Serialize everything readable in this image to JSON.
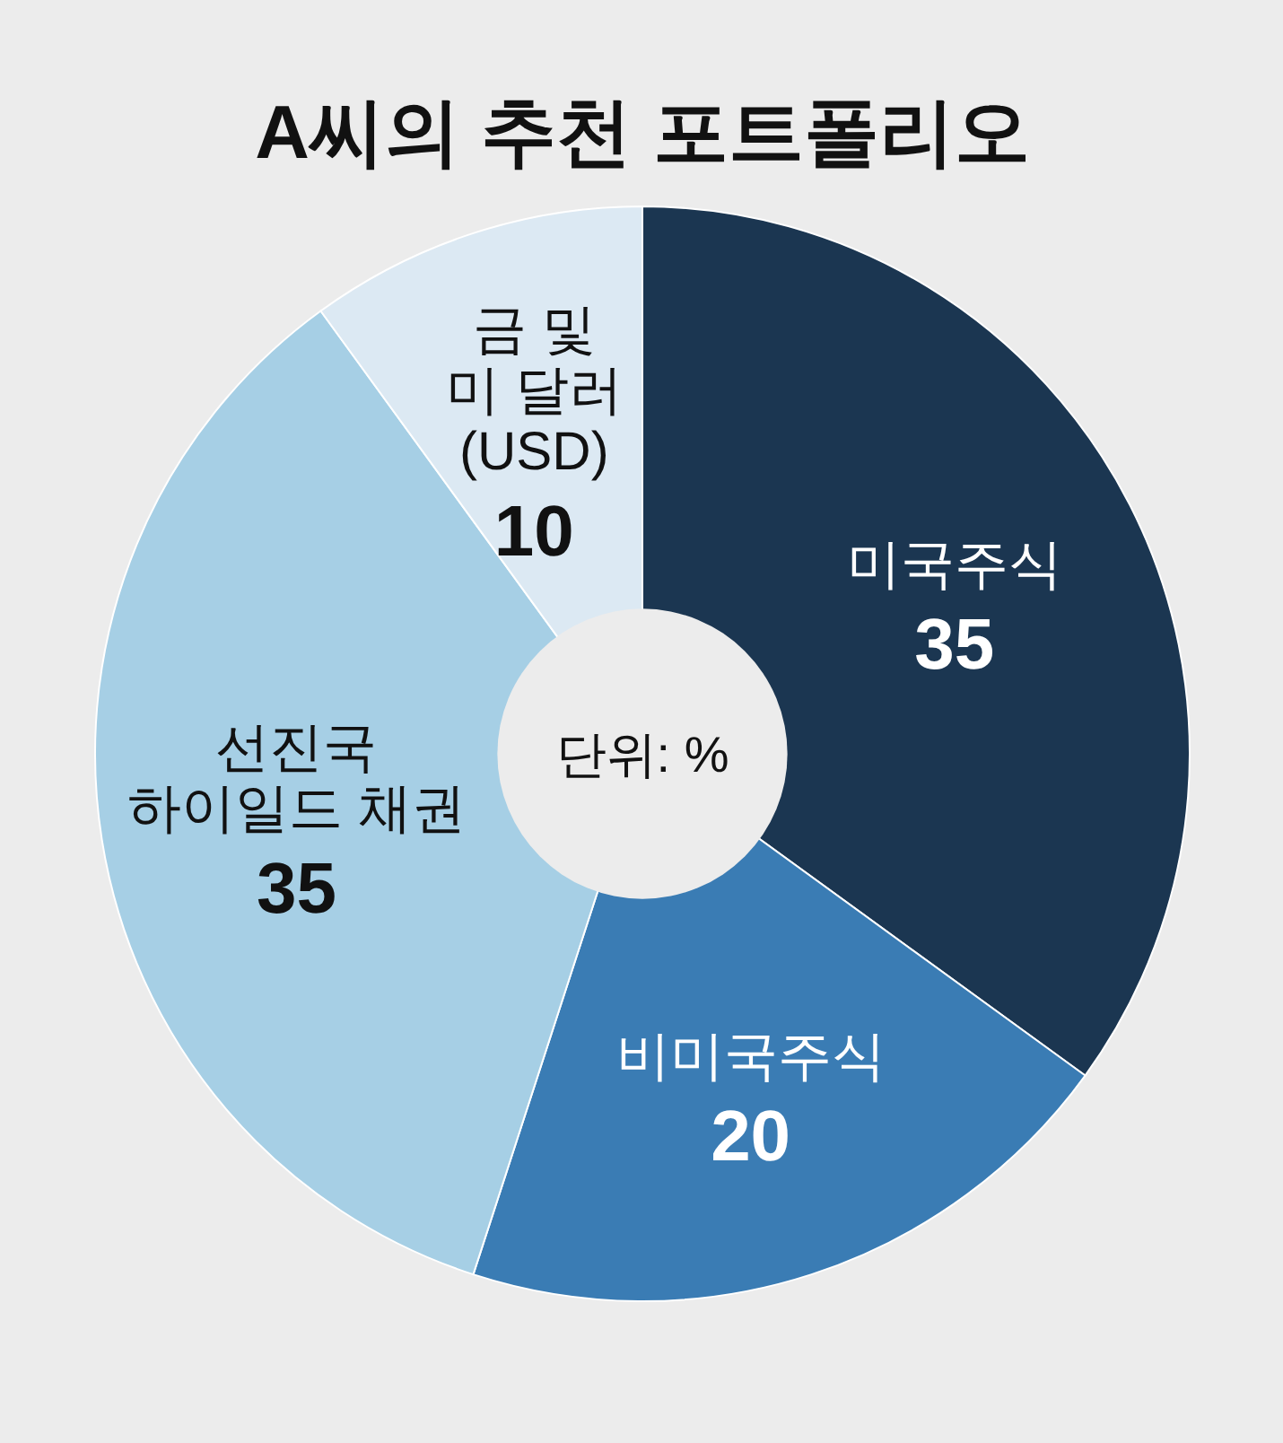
{
  "chart_data": {
    "type": "donut",
    "title": "A씨의 추천 포트폴리오",
    "categories": [
      "미국주식",
      "비미국주식",
      "선진국\n하이일드 채권",
      "금 및\n미 달러\n(USD)"
    ],
    "values": [
      35,
      20,
      35,
      10
    ],
    "colors": [
      "#1b3651",
      "#3a7cb4",
      "#a6cfe5",
      "#dce9f3"
    ],
    "data_labels": true,
    "annotations": [
      "단위: %"
    ]
  }
}
